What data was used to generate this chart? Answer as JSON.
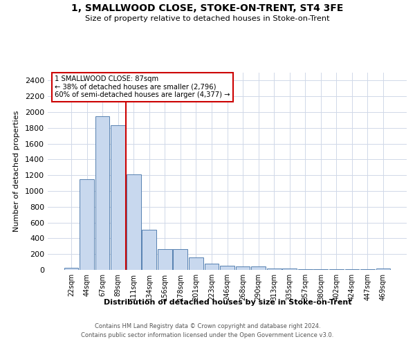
{
  "title": "1, SMALLWOOD CLOSE, STOKE-ON-TRENT, ST4 3FE",
  "subtitle": "Size of property relative to detached houses in Stoke-on-Trent",
  "xlabel": "Distribution of detached houses by size in Stoke-on-Trent",
  "ylabel": "Number of detached properties",
  "categories": [
    "22sqm",
    "44sqm",
    "67sqm",
    "89sqm",
    "111sqm",
    "134sqm",
    "156sqm",
    "178sqm",
    "201sqm",
    "223sqm",
    "246sqm",
    "268sqm",
    "290sqm",
    "313sqm",
    "335sqm",
    "357sqm",
    "380sqm",
    "402sqm",
    "424sqm",
    "447sqm",
    "469sqm"
  ],
  "values": [
    30,
    1150,
    1950,
    1830,
    1210,
    510,
    265,
    265,
    155,
    80,
    50,
    40,
    40,
    20,
    15,
    10,
    10,
    10,
    8,
    5,
    20
  ],
  "bar_color": "#c8d8ee",
  "bar_edge_color": "#5580b0",
  "vline_x": 3.5,
  "vline_color": "#cc0000",
  "annotation_text": "1 SMALLWOOD CLOSE: 87sqm\n← 38% of detached houses are smaller (2,796)\n60% of semi-detached houses are larger (4,377) →",
  "annotation_box_facecolor": "#ffffff",
  "annotation_box_edgecolor": "#cc0000",
  "ylim_max": 2500,
  "yticks": [
    0,
    200,
    400,
    600,
    800,
    1000,
    1200,
    1400,
    1600,
    1800,
    2000,
    2200,
    2400
  ],
  "footer_line1": "Contains HM Land Registry data © Crown copyright and database right 2024.",
  "footer_line2": "Contains public sector information licensed under the Open Government Licence v3.0.",
  "bg_color": "#ffffff",
  "grid_color": "#d0d8e8",
  "fig_width": 6.0,
  "fig_height": 5.0
}
